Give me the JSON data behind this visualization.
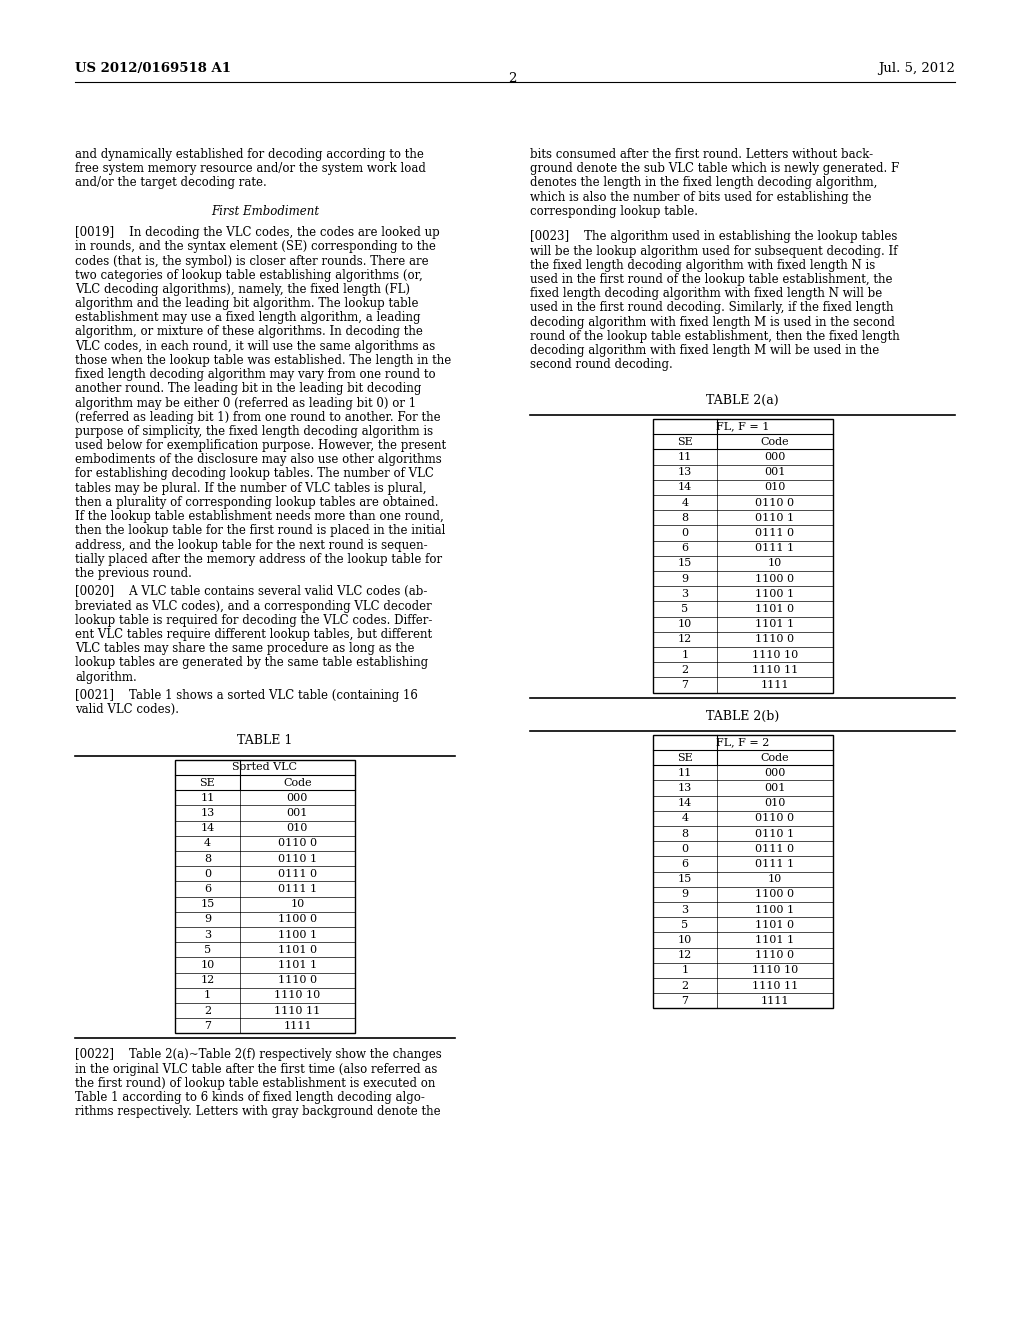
{
  "header_left": "US 2012/0169518 A1",
  "header_right": "Jul. 5, 2012",
  "page_number": "2",
  "table1_header": "Sorted VLC",
  "table1_col1": "SE",
  "table1_col2": "Code",
  "table1_data": [
    [
      "11",
      "000"
    ],
    [
      "13",
      "001"
    ],
    [
      "14",
      "010"
    ],
    [
      "4",
      "0110 0"
    ],
    [
      "8",
      "0110 1"
    ],
    [
      "0",
      "0111 0"
    ],
    [
      "6",
      "0111 1"
    ],
    [
      "15",
      "10"
    ],
    [
      "9",
      "1100 0"
    ],
    [
      "3",
      "1100 1"
    ],
    [
      "5",
      "1101 0"
    ],
    [
      "10",
      "1101 1"
    ],
    [
      "12",
      "1110 0"
    ],
    [
      "1",
      "1110 10"
    ],
    [
      "2",
      "1110 11"
    ],
    [
      "7",
      "1111"
    ]
  ],
  "table2a_header": "FL, F = 1",
  "table2a_col1": "SE",
  "table2a_col2": "Code",
  "table2a_data": [
    [
      "11",
      "000"
    ],
    [
      "13",
      "001"
    ],
    [
      "14",
      "010"
    ],
    [
      "4",
      "0110 0"
    ],
    [
      "8",
      "0110 1"
    ],
    [
      "0",
      "0111 0"
    ],
    [
      "6",
      "0111 1"
    ],
    [
      "15",
      "10"
    ],
    [
      "9",
      "1100 0"
    ],
    [
      "3",
      "1100 1"
    ],
    [
      "5",
      "1101 0"
    ],
    [
      "10",
      "1101 1"
    ],
    [
      "12",
      "1110 0"
    ],
    [
      "1",
      "1110 10"
    ],
    [
      "2",
      "1110 11"
    ],
    [
      "7",
      "1111"
    ]
  ],
  "table2b_header": "FL, F = 2",
  "table2b_col1": "SE",
  "table2b_col2": "Code",
  "table2b_data": [
    [
      "11",
      "000"
    ],
    [
      "13",
      "001"
    ],
    [
      "14",
      "010"
    ],
    [
      "4",
      "0110 0"
    ],
    [
      "8",
      "0110 1"
    ],
    [
      "0",
      "0111 0"
    ],
    [
      "6",
      "0111 1"
    ],
    [
      "15",
      "10"
    ],
    [
      "9",
      "1100 0"
    ],
    [
      "3",
      "1100 1"
    ],
    [
      "5",
      "1101 0"
    ],
    [
      "10",
      "1101 1"
    ],
    [
      "12",
      "1110 0"
    ],
    [
      "1",
      "1110 10"
    ],
    [
      "2",
      "1110 11"
    ],
    [
      "7",
      "1111"
    ]
  ],
  "left_para1": [
    "and dynamically established for decoding according to the",
    "free system memory resource and/or the system work load",
    "and/or the target decoding rate."
  ],
  "center_heading": "First Embodiment",
  "left_para2": [
    "[0019]    In decoding the VLC codes, the codes are looked up",
    "in rounds, and the syntax element (SE) corresponding to the",
    "codes (that is, the symbol) is closer after rounds. There are",
    "two categories of lookup table establishing algorithms (or,",
    "VLC decoding algorithms), namely, the fixed length (FL)",
    "algorithm and the leading bit algorithm. The lookup table",
    "establishment may use a fixed length algorithm, a leading",
    "algorithm, or mixture of these algorithms. In decoding the",
    "VLC codes, in each round, it will use the same algorithms as",
    "those when the lookup table was established. The length in the",
    "fixed length decoding algorithm may vary from one round to",
    "another round. The leading bit in the leading bit decoding",
    "algorithm may be either 0 (referred as leading bit 0) or 1",
    "(referred as leading bit 1) from one round to another. For the",
    "purpose of simplicity, the fixed length decoding algorithm is",
    "used below for exemplification purpose. However, the present",
    "embodiments of the disclosure may also use other algorithms",
    "for establishing decoding lookup tables. The number of VLC",
    "tables may be plural. If the number of VLC tables is plural,",
    "then a plurality of corresponding lookup tables are obtained.",
    "If the lookup table establishment needs more than one round,",
    "then the lookup table for the first round is placed in the initial",
    "address, and the lookup table for the next round is sequen-",
    "tially placed after the memory address of the lookup table for",
    "the previous round."
  ],
  "left_para3": [
    "[0020]    A VLC table contains several valid VLC codes (ab-",
    "breviated as VLC codes), and a corresponding VLC decoder",
    "lookup table is required for decoding the VLC codes. Differ-",
    "ent VLC tables require different lookup tables, but different",
    "VLC tables may share the same procedure as long as the",
    "lookup tables are generated by the same table establishing",
    "algorithm."
  ],
  "left_para4": [
    "[0021]    Table 1 shows a sorted VLC table (containing 16",
    "valid VLC codes)."
  ],
  "left_para5": [
    "[0022]    Table 2(a)~Table 2(f) respectively show the changes",
    "in the original VLC table after the first time (also referred as",
    "the first round) of lookup table establishment is executed on",
    "Table 1 according to 6 kinds of fixed length decoding algo-",
    "rithms respectively. Letters with gray background denote the"
  ],
  "right_para1": [
    "bits consumed after the first round. Letters without back-",
    "ground denote the sub VLC table which is newly generated. F",
    "denotes the length in the fixed length decoding algorithm,",
    "which is also the number of bits used for establishing the",
    "corresponding lookup table."
  ],
  "right_para2": [
    "[0023]    The algorithm used in establishing the lookup tables",
    "will be the lookup algorithm used for subsequent decoding. If",
    "the fixed length decoding algorithm with fixed length N is",
    "used in the first round of the lookup table establishment, the",
    "fixed length decoding algorithm with fixed length N will be",
    "used in the first round decoding. Similarly, if the fixed length",
    "decoding algorithm with fixed length M is used in the second",
    "round of the lookup table establishment, then the fixed length",
    "decoding algorithm with fixed length M will be used in the",
    "second round decoding."
  ],
  "bg_color": "#ffffff",
  "text_color": "#000000"
}
